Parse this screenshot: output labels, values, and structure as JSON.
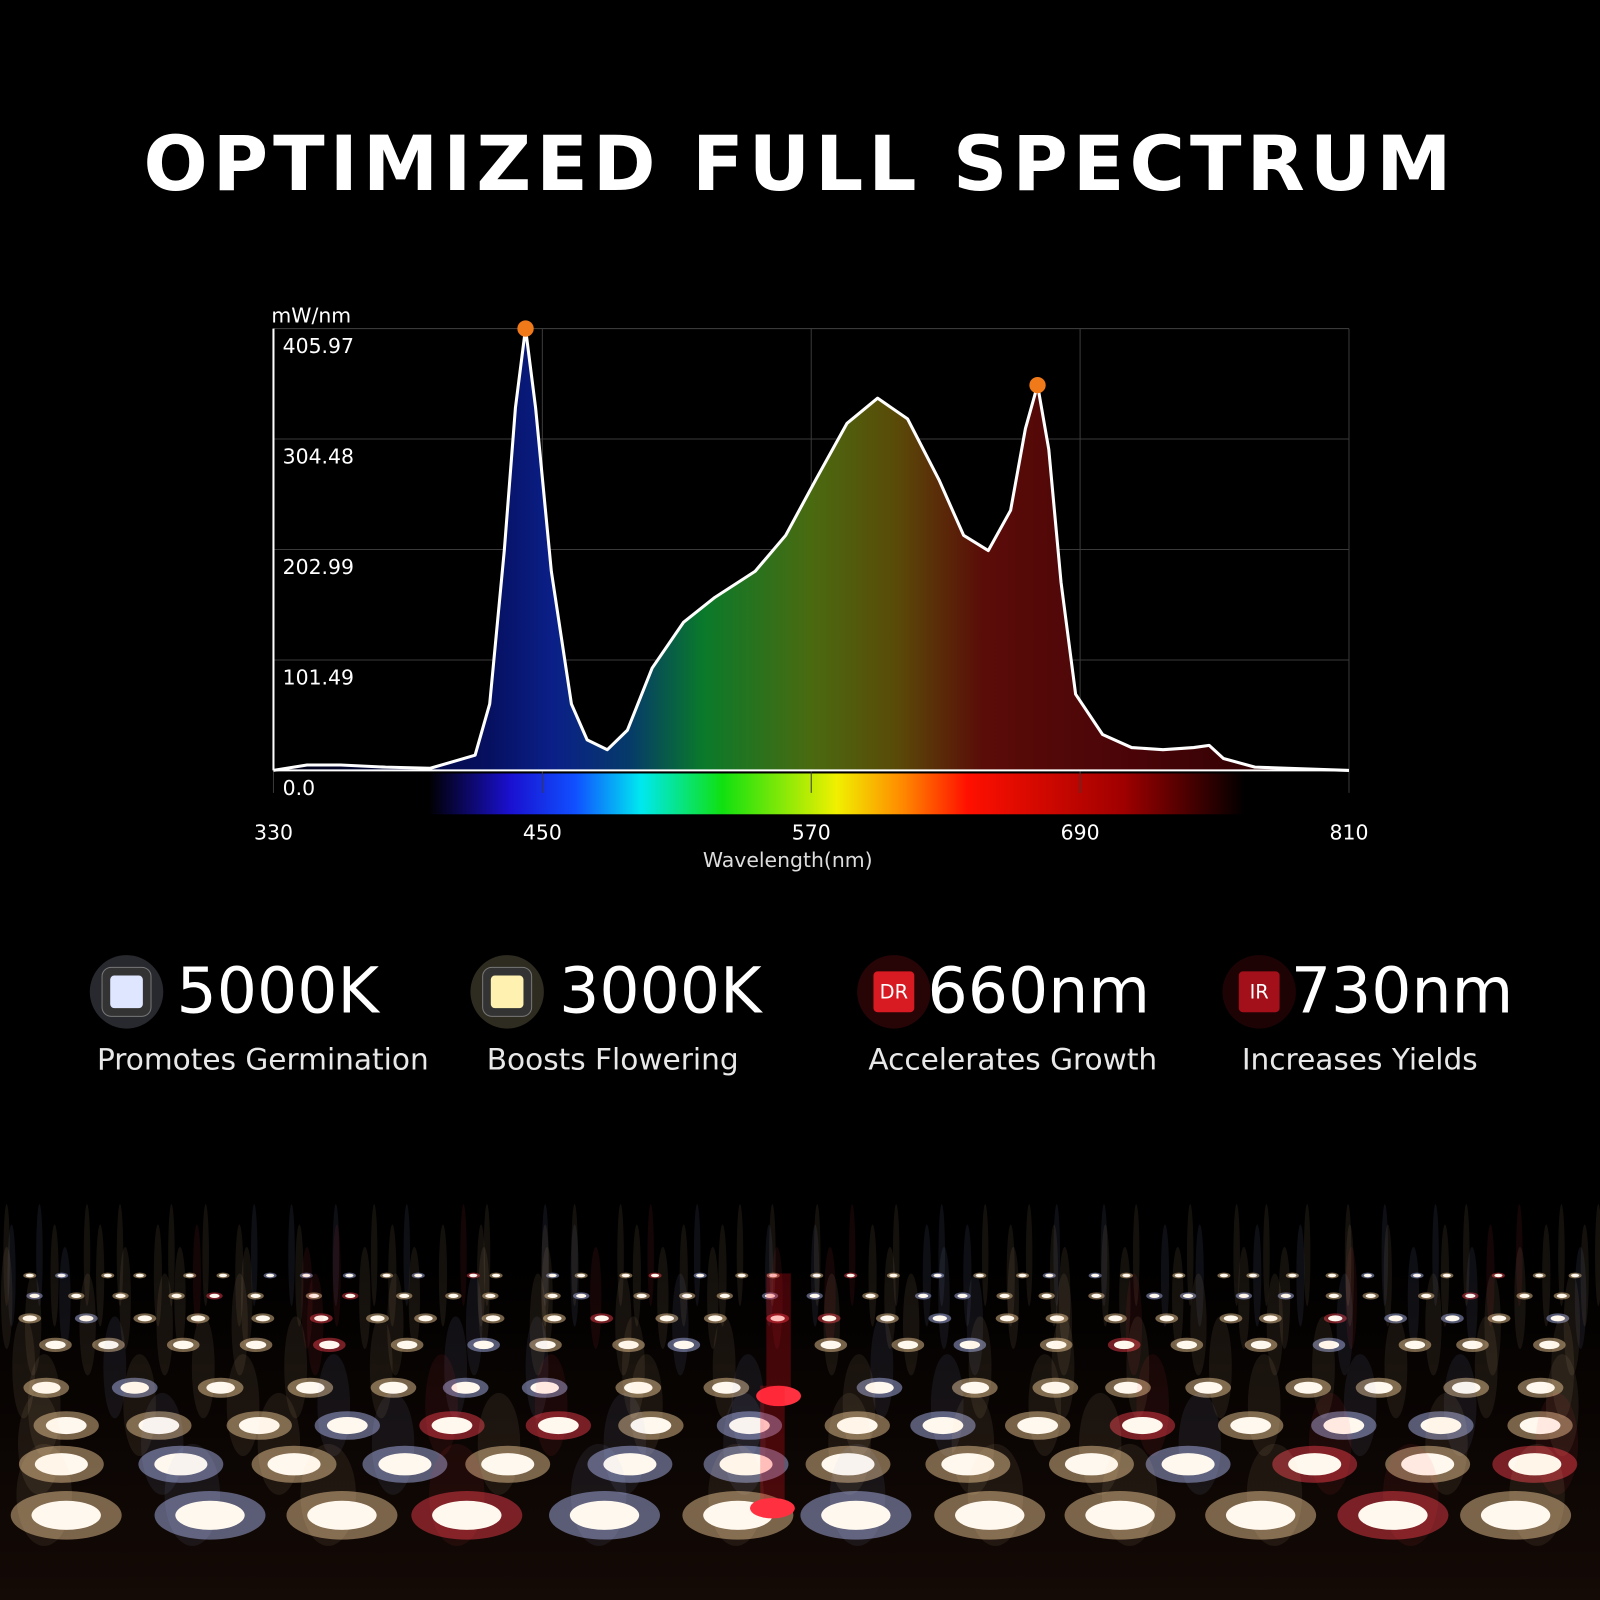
{
  "chart_data": {
    "type": "line",
    "title": "OPTIMIZED FULL SPECTRUM",
    "ylabel": "mW/nm",
    "xlabel": "Wavelength(nm)",
    "x": [
      330,
      345,
      360,
      380,
      400,
      420,
      426.5,
      433,
      438,
      442.5,
      447,
      454,
      463,
      470,
      479,
      488,
      499,
      513,
      527,
      545,
      558.6,
      572,
      586,
      599.6,
      613,
      627,
      638,
      649,
      659,
      665.6,
      671,
      676,
      681.5,
      688,
      700,
      713,
      727,
      740.7,
      747.6,
      754,
      768,
      810
    ],
    "values": [
      0,
      5,
      5,
      3,
      2,
      14,
      61,
      202,
      333,
      405.97,
      333,
      183,
      61,
      28,
      19,
      37,
      94,
      136,
      159,
      183,
      216,
      267,
      319,
      342,
      323,
      267,
      216,
      202,
      239,
      314,
      354,
      295,
      173,
      70,
      33,
      21,
      19,
      21,
      23,
      11,
      3,
      0
    ],
    "color": "#ffffff",
    "peaks": {
      "x": [
        442.5,
        671
      ],
      "values": [
        405.97,
        354
      ],
      "color": "#f07a1a"
    },
    "xlim": [
      330,
      810
    ],
    "xticks": [
      330,
      450,
      570,
      690,
      810
    ],
    "ylim": [
      0,
      405.97
    ],
    "yticks": [
      {
        "value": 0,
        "label": "0.0"
      },
      101.49,
      202.99,
      304.48,
      405.97
    ],
    "grid": true
  },
  "features": [
    {
      "value": "5000K",
      "caption": "Promotes Germination",
      "color": "#dfe6ff"
    },
    {
      "value": "3000K",
      "caption": "Boosts Flowering",
      "color": "#fff1b0"
    },
    {
      "badge": "DR",
      "value": "660nm",
      "caption": "Accelerates Growth",
      "color": "#d81a22"
    },
    {
      "badge": "IR",
      "value": "730nm",
      "caption": "Increases Yields",
      "color": "#a4101a"
    }
  ]
}
